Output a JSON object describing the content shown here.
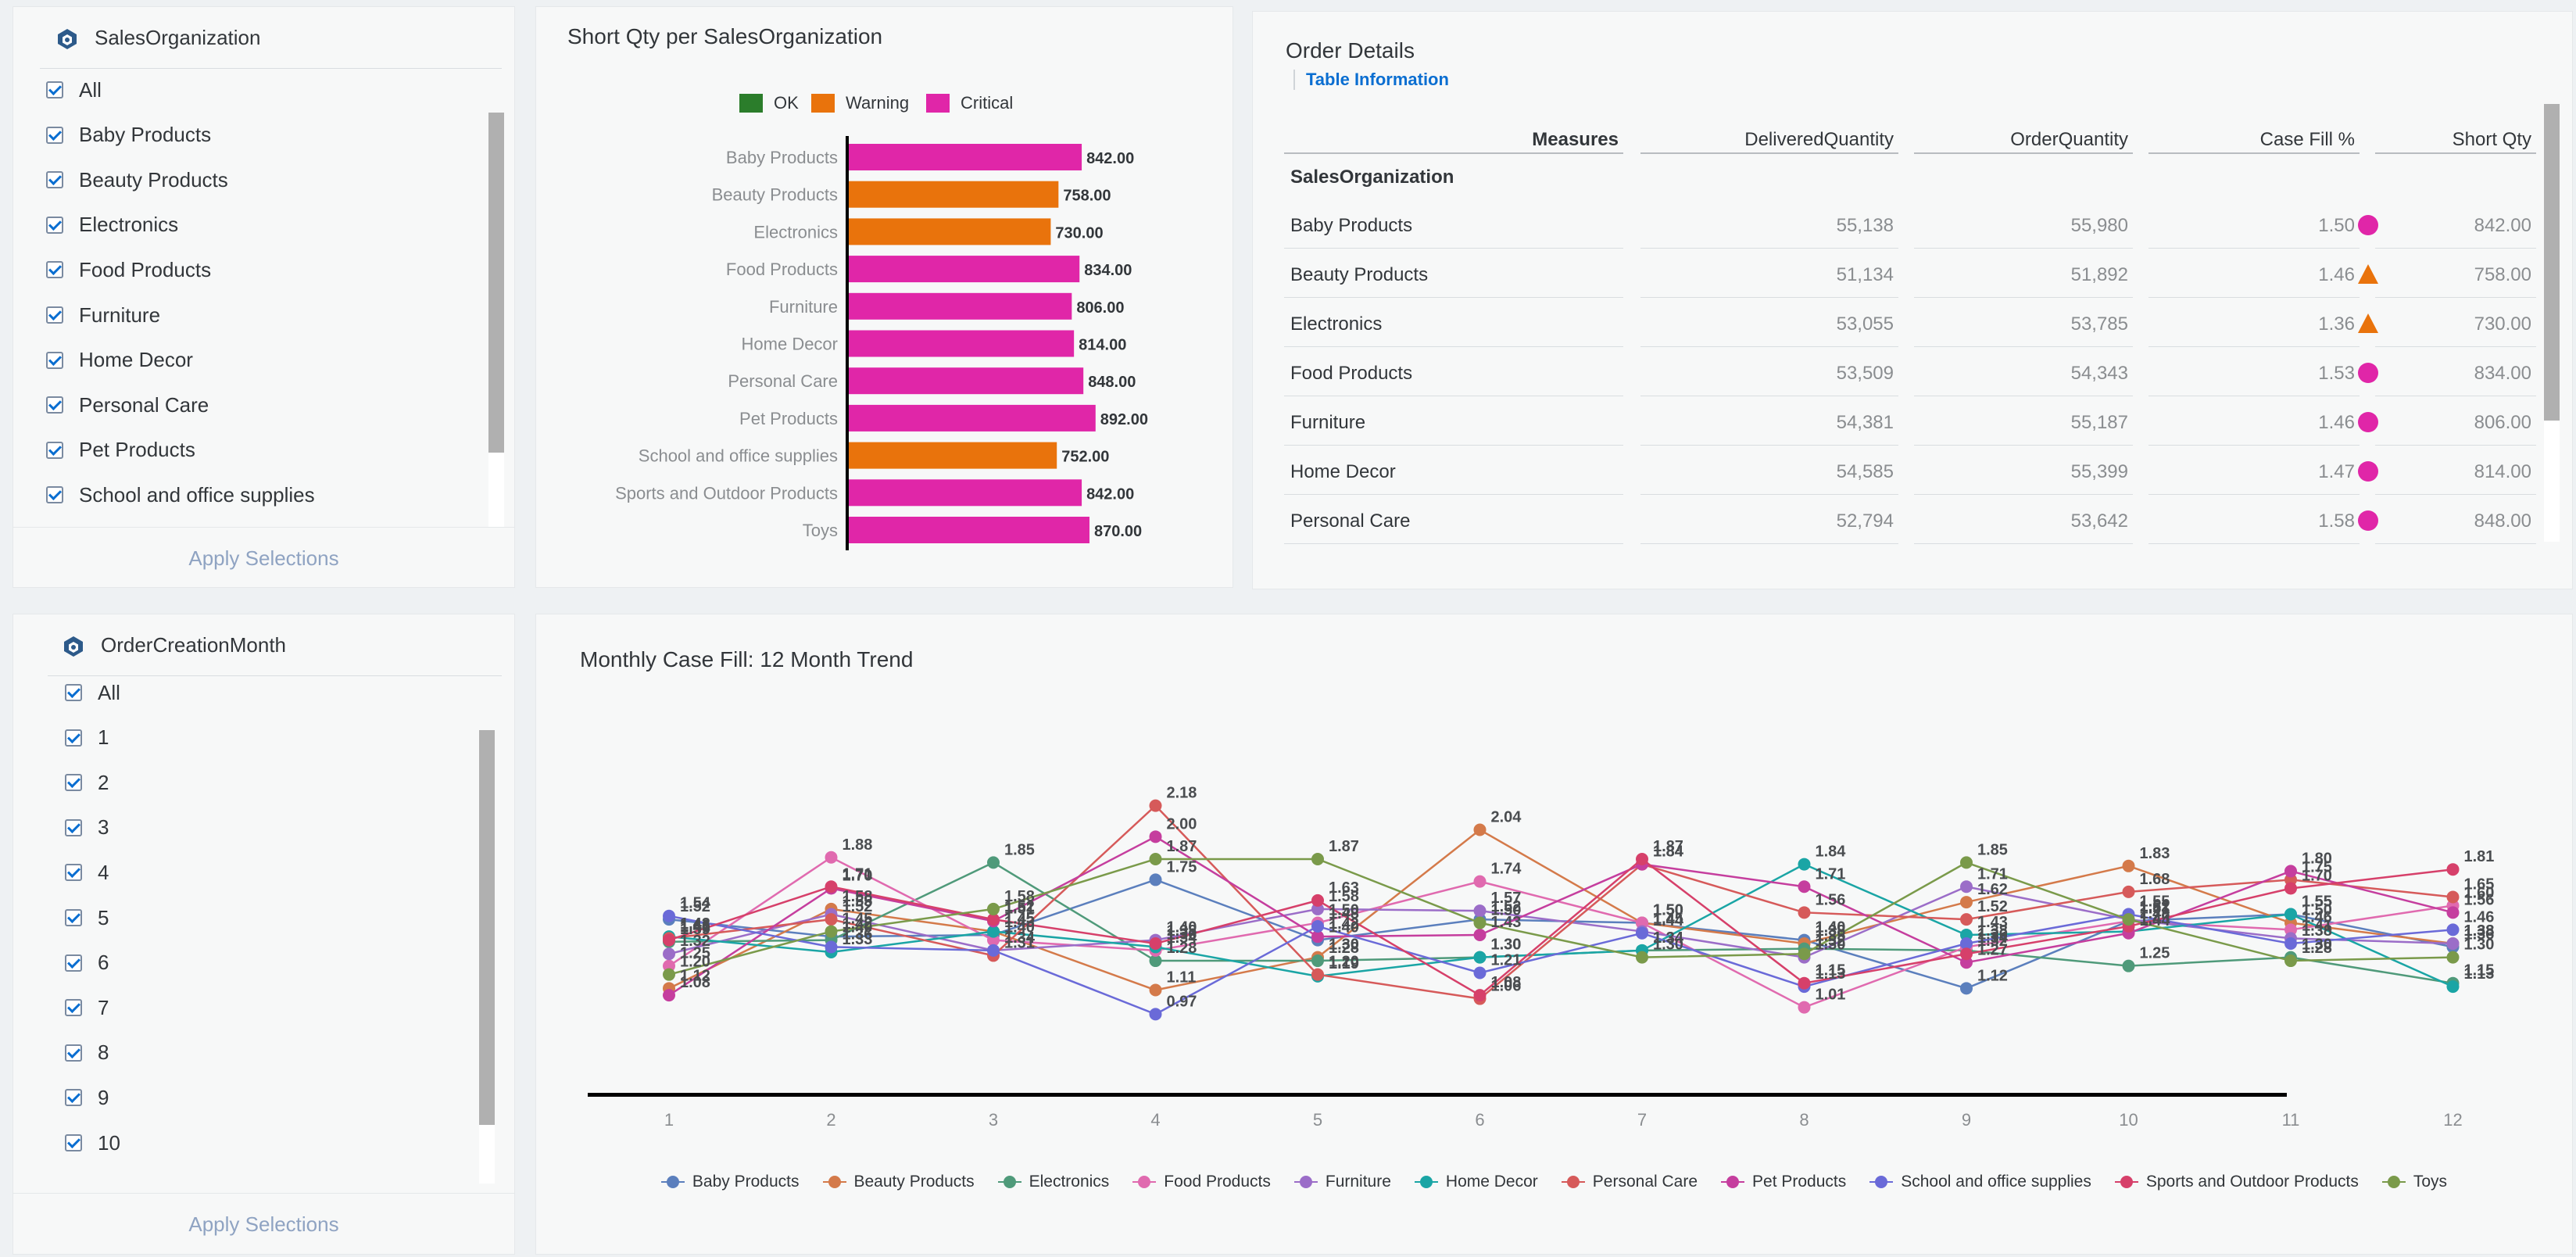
{
  "filter_sales": {
    "title": "SalesOrganization",
    "items": [
      "All",
      "Baby Products",
      "Beauty Products",
      "Electronics",
      "Food Products",
      "Furniture",
      "Home Decor",
      "Personal Care",
      "Pet Products",
      "School and office supplies"
    ],
    "apply": "Apply Selections"
  },
  "filter_month": {
    "title": "OrderCreationMonth",
    "items": [
      "All",
      "1",
      "2",
      "3",
      "4",
      "5",
      "6",
      "7",
      "8",
      "9",
      "10"
    ],
    "apply": "Apply Selections"
  },
  "bar_chart": {
    "title": "Short Qty per SalesOrganization",
    "legend": [
      {
        "label": "OK",
        "color": "#2b7d2b"
      },
      {
        "label": "Warning",
        "color": "#e9730c"
      },
      {
        "label": "Critical",
        "color": "#e026a8"
      }
    ]
  },
  "order_details": {
    "title": "Order Details",
    "tab": "Table Information",
    "columns": [
      "Measures",
      "DeliveredQuantity",
      "OrderQuantity",
      "Case Fill %",
      "Short Qty"
    ],
    "row_dimension": "SalesOrganization",
    "rows": [
      {
        "name": "Baby Products",
        "delivered": "55,138",
        "order": "55,980",
        "fill": "1.50",
        "status": "critical",
        "short": "842.00"
      },
      {
        "name": "Beauty Products",
        "delivered": "51,134",
        "order": "51,892",
        "fill": "1.46",
        "status": "warning",
        "short": "758.00"
      },
      {
        "name": "Electronics",
        "delivered": "53,055",
        "order": "53,785",
        "fill": "1.36",
        "status": "warning",
        "short": "730.00"
      },
      {
        "name": "Food Products",
        "delivered": "53,509",
        "order": "54,343",
        "fill": "1.53",
        "status": "critical",
        "short": "834.00"
      },
      {
        "name": "Furniture",
        "delivered": "54,381",
        "order": "55,187",
        "fill": "1.46",
        "status": "critical",
        "short": "806.00"
      },
      {
        "name": "Home Decor",
        "delivered": "54,585",
        "order": "55,399",
        "fill": "1.47",
        "status": "critical",
        "short": "814.00"
      },
      {
        "name": "Personal Care",
        "delivered": "52,794",
        "order": "53,642",
        "fill": "1.58",
        "status": "critical",
        "short": "848.00"
      }
    ]
  },
  "line_chart": {
    "title": "Monthly Case Fill: 12 Month Trend"
  },
  "chart_data": [
    {
      "type": "bar",
      "orientation": "horizontal",
      "title": "Short Qty per SalesOrganization",
      "categories": [
        "Baby Products",
        "Beauty Products",
        "Electronics",
        "Food Products",
        "Furniture",
        "Home Decor",
        "Personal Care",
        "Pet Products",
        "School and office supplies",
        "Sports and Outdoor Products",
        "Toys"
      ],
      "values": [
        842,
        758,
        730,
        834,
        806,
        814,
        848,
        892,
        752,
        842,
        870
      ],
      "value_labels": [
        "842.00",
        "758.00",
        "730.00",
        "834.00",
        "806.00",
        "814.00",
        "848.00",
        "892.00",
        "752.00",
        "842.00",
        "870.00"
      ],
      "status": [
        "Critical",
        "Warning",
        "Warning",
        "Critical",
        "Critical",
        "Critical",
        "Critical",
        "Critical",
        "Warning",
        "Critical",
        "Critical"
      ],
      "legend": [
        "OK",
        "Warning",
        "Critical"
      ],
      "legend_position": "top"
    },
    {
      "type": "line",
      "title": "Monthly Case Fill: 12 Month Trend",
      "x": [
        "1",
        "2",
        "3",
        "4",
        "5",
        "6",
        "7",
        "8",
        "9",
        "10",
        "11",
        "12"
      ],
      "ylim": [
        0.5,
        2.7
      ],
      "legend_position": "bottom",
      "series": [
        {
          "name": "Baby Products",
          "color": "#5b7fbd",
          "values": [
            1.52,
            1.42,
            1.43,
            1.75,
            1.4,
            1.52,
            1.5,
            1.4,
            1.12,
            1.51,
            1.55,
            1.36
          ]
        },
        {
          "name": "Beauty Products",
          "color": "#d47a4a",
          "values": [
            1.12,
            1.58,
            1.45,
            1.11,
            1.3,
            2.04,
            1.5,
            1.38,
            1.62,
            1.83,
            1.5,
            1.38
          ]
        },
        {
          "name": "Electronics",
          "color": "#4f9a7a",
          "values": [
            1.39,
            1.4,
            1.85,
            1.28,
            1.28,
            1.3,
            1.34,
            1.35,
            1.34,
            1.25,
            1.3,
            1.15
          ]
        },
        {
          "name": "Food Products",
          "color": "#e06aaf",
          "values": [
            1.25,
            1.88,
            1.4,
            1.34,
            1.5,
            1.74,
            1.5,
            1.01,
            1.36,
            1.51,
            1.46,
            1.6
          ]
        },
        {
          "name": "Furniture",
          "color": "#9b6dc8",
          "values": [
            1.32,
            1.55,
            1.34,
            1.4,
            1.58,
            1.57,
            1.45,
            1.3,
            1.71,
            1.52,
            1.41,
            1.38
          ]
        },
        {
          "name": "Home Decor",
          "color": "#1aa5a5",
          "values": [
            1.42,
            1.33,
            1.45,
            1.36,
            1.19,
            1.3,
            1.34,
            1.84,
            1.43,
            1.45,
            1.55,
            1.13
          ]
        },
        {
          "name": "Personal Care",
          "color": "#d65a5a",
          "values": [
            1.41,
            1.52,
            1.31,
            2.18,
            1.2,
            1.06,
            1.84,
            1.56,
            1.52,
            1.68,
            1.75,
            1.65
          ]
        },
        {
          "name": "Pet Products",
          "color": "#c53e9e",
          "values": [
            1.08,
            1.7,
            1.51,
            2.0,
            1.42,
            1.43,
            1.84,
            1.71,
            1.27,
            1.44,
            1.8,
            1.56
          ]
        },
        {
          "name": "School and office supplies",
          "color": "#6a6ad8",
          "values": [
            1.54,
            1.36,
            1.34,
            0.97,
            1.48,
            1.21,
            1.44,
            1.13,
            1.38,
            1.55,
            1.38,
            1.46
          ]
        },
        {
          "name": "Sports and Outdoor Products",
          "color": "#d6406a",
          "values": [
            1.4,
            1.71,
            1.52,
            1.38,
            1.63,
            1.08,
            1.87,
            1.15,
            1.32,
            1.48,
            1.7,
            1.81
          ]
        },
        {
          "name": "Toys",
          "color": "#7a9a4a",
          "values": [
            1.2,
            1.45,
            1.58,
            1.87,
            1.87,
            1.5,
            1.3,
            1.32,
            1.85,
            1.52,
            1.28,
            1.3
          ]
        }
      ]
    }
  ]
}
